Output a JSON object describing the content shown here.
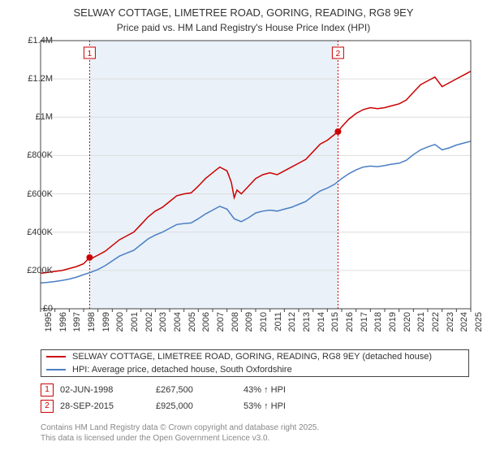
{
  "title": "SELWAY COTTAGE, LIMETREE ROAD, GORING, READING, RG8 9EY",
  "subtitle": "Price paid vs. HM Land Registry's House Price Index (HPI)",
  "chart": {
    "type": "line",
    "background_color": "#ffffff",
    "plot_band_color": "#eaf1f8",
    "border_color": "#444444",
    "grid_color": "#dddddd",
    "x_start_year": 1995,
    "x_end_year": 2025,
    "ylim": [
      0,
      1400000
    ],
    "ytick_step": 200000,
    "ytick_labels": [
      "£0",
      "£200K",
      "£400K",
      "£600K",
      "£800K",
      "£1M",
      "£1.2M",
      "£1.4M"
    ],
    "xtick_years": [
      1995,
      1996,
      1997,
      1998,
      1999,
      2000,
      2001,
      2002,
      2003,
      2004,
      2005,
      2006,
      2007,
      2008,
      2009,
      2010,
      2011,
      2012,
      2013,
      2014,
      2015,
      2016,
      2017,
      2018,
      2019,
      2020,
      2021,
      2022,
      2023,
      2024,
      2025
    ],
    "series": [
      {
        "name": "property",
        "label": "SELWAY COTTAGE, LIMETREE ROAD, GORING, READING, RG8 9EY (detached house)",
        "color": "#cc0000",
        "line_width": 1.5,
        "data": [
          [
            1995.0,
            185000
          ],
          [
            1995.5,
            190000
          ],
          [
            1996.0,
            195000
          ],
          [
            1996.5,
            200000
          ],
          [
            1997.0,
            210000
          ],
          [
            1997.5,
            220000
          ],
          [
            1998.0,
            235000
          ],
          [
            1998.42,
            267500
          ],
          [
            1998.5,
            260000
          ],
          [
            1999.0,
            280000
          ],
          [
            1999.5,
            300000
          ],
          [
            2000.0,
            330000
          ],
          [
            2000.5,
            360000
          ],
          [
            2001.0,
            380000
          ],
          [
            2001.5,
            400000
          ],
          [
            2002.0,
            440000
          ],
          [
            2002.5,
            480000
          ],
          [
            2003.0,
            510000
          ],
          [
            2003.5,
            530000
          ],
          [
            2004.0,
            560000
          ],
          [
            2004.5,
            590000
          ],
          [
            2005.0,
            600000
          ],
          [
            2005.5,
            605000
          ],
          [
            2006.0,
            640000
          ],
          [
            2006.5,
            680000
          ],
          [
            2007.0,
            710000
          ],
          [
            2007.5,
            740000
          ],
          [
            2008.0,
            720000
          ],
          [
            2008.3,
            660000
          ],
          [
            2008.5,
            580000
          ],
          [
            2008.7,
            620000
          ],
          [
            2009.0,
            600000
          ],
          [
            2009.5,
            640000
          ],
          [
            2010.0,
            680000
          ],
          [
            2010.5,
            700000
          ],
          [
            2011.0,
            710000
          ],
          [
            2011.5,
            700000
          ],
          [
            2012.0,
            720000
          ],
          [
            2012.5,
            740000
          ],
          [
            2013.0,
            760000
          ],
          [
            2013.5,
            780000
          ],
          [
            2014.0,
            820000
          ],
          [
            2014.5,
            860000
          ],
          [
            2015.0,
            880000
          ],
          [
            2015.5,
            910000
          ],
          [
            2015.74,
            925000
          ],
          [
            2016.0,
            950000
          ],
          [
            2016.5,
            990000
          ],
          [
            2017.0,
            1020000
          ],
          [
            2017.5,
            1040000
          ],
          [
            2018.0,
            1050000
          ],
          [
            2018.5,
            1045000
          ],
          [
            2019.0,
            1050000
          ],
          [
            2019.5,
            1060000
          ],
          [
            2020.0,
            1070000
          ],
          [
            2020.5,
            1090000
          ],
          [
            2021.0,
            1130000
          ],
          [
            2021.5,
            1170000
          ],
          [
            2022.0,
            1190000
          ],
          [
            2022.5,
            1210000
          ],
          [
            2023.0,
            1160000
          ],
          [
            2023.5,
            1180000
          ],
          [
            2024.0,
            1200000
          ],
          [
            2024.5,
            1220000
          ],
          [
            2025.0,
            1240000
          ]
        ]
      },
      {
        "name": "hpi",
        "label": "HPI: Average price, detached house, South Oxfordshire",
        "color": "#4a7fc4",
        "line_width": 1.5,
        "data": [
          [
            1995.0,
            135000
          ],
          [
            1995.5,
            138000
          ],
          [
            1996.0,
            142000
          ],
          [
            1996.5,
            148000
          ],
          [
            1997.0,
            155000
          ],
          [
            1997.5,
            165000
          ],
          [
            1998.0,
            178000
          ],
          [
            1998.5,
            190000
          ],
          [
            1999.0,
            205000
          ],
          [
            1999.5,
            225000
          ],
          [
            2000.0,
            250000
          ],
          [
            2000.5,
            275000
          ],
          [
            2001.0,
            290000
          ],
          [
            2001.5,
            305000
          ],
          [
            2002.0,
            335000
          ],
          [
            2002.5,
            365000
          ],
          [
            2003.0,
            385000
          ],
          [
            2003.5,
            400000
          ],
          [
            2004.0,
            420000
          ],
          [
            2004.5,
            440000
          ],
          [
            2005.0,
            445000
          ],
          [
            2005.5,
            448000
          ],
          [
            2006.0,
            470000
          ],
          [
            2006.5,
            495000
          ],
          [
            2007.0,
            515000
          ],
          [
            2007.5,
            535000
          ],
          [
            2008.0,
            520000
          ],
          [
            2008.5,
            470000
          ],
          [
            2009.0,
            455000
          ],
          [
            2009.5,
            475000
          ],
          [
            2010.0,
            500000
          ],
          [
            2010.5,
            510000
          ],
          [
            2011.0,
            515000
          ],
          [
            2011.5,
            510000
          ],
          [
            2012.0,
            520000
          ],
          [
            2012.5,
            530000
          ],
          [
            2013.0,
            545000
          ],
          [
            2013.5,
            560000
          ],
          [
            2014.0,
            590000
          ],
          [
            2014.5,
            615000
          ],
          [
            2015.0,
            630000
          ],
          [
            2015.5,
            650000
          ],
          [
            2016.0,
            680000
          ],
          [
            2016.5,
            705000
          ],
          [
            2017.0,
            725000
          ],
          [
            2017.5,
            740000
          ],
          [
            2018.0,
            745000
          ],
          [
            2018.5,
            742000
          ],
          [
            2019.0,
            748000
          ],
          [
            2019.5,
            755000
          ],
          [
            2020.0,
            760000
          ],
          [
            2020.5,
            775000
          ],
          [
            2021.0,
            805000
          ],
          [
            2021.5,
            830000
          ],
          [
            2022.0,
            845000
          ],
          [
            2022.5,
            858000
          ],
          [
            2023.0,
            830000
          ],
          [
            2023.5,
            840000
          ],
          [
            2024.0,
            855000
          ],
          [
            2024.5,
            865000
          ],
          [
            2025.0,
            875000
          ]
        ]
      }
    ],
    "transactions": [
      {
        "n": "1",
        "year": 1998.42,
        "date": "02-JUN-1998",
        "price": "£267,500",
        "diff": "43% ↑ HPI",
        "y": 267500
      },
      {
        "n": "2",
        "year": 2015.74,
        "date": "28-SEP-2015",
        "price": "£925,000",
        "diff": "53% ↑ HPI",
        "y": 925000
      }
    ],
    "marker_color": "#cc0000",
    "marker_line_color": "#cc0000",
    "marker_dash": "2,2"
  },
  "footer": {
    "line1": "Contains HM Land Registry data © Crown copyright and database right 2025.",
    "line2": "This data is licensed under the Open Government Licence v3.0."
  }
}
